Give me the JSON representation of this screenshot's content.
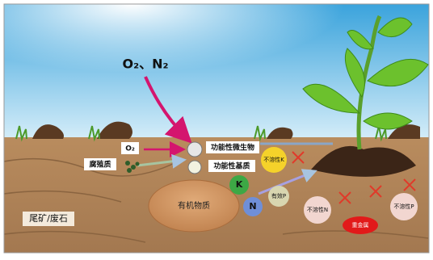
{
  "nodes": [
    {
      "label": "O₂、N₂"
    },
    {
      "label": "O₂"
    },
    {
      "label": "腐殖质"
    },
    {
      "label": "功能性微生物"
    },
    {
      "label": "功能性基质"
    },
    {
      "label": "不溶性K"
    },
    {
      "label": "K"
    },
    {
      "label": "有效P"
    },
    {
      "label": "N"
    },
    {
      "label": "有机物质"
    },
    {
      "label": "不溶性N"
    },
    {
      "label": "重金属"
    },
    {
      "label": "不溶性P"
    },
    {
      "label": "尾矿/废石"
    }
  ]
}
